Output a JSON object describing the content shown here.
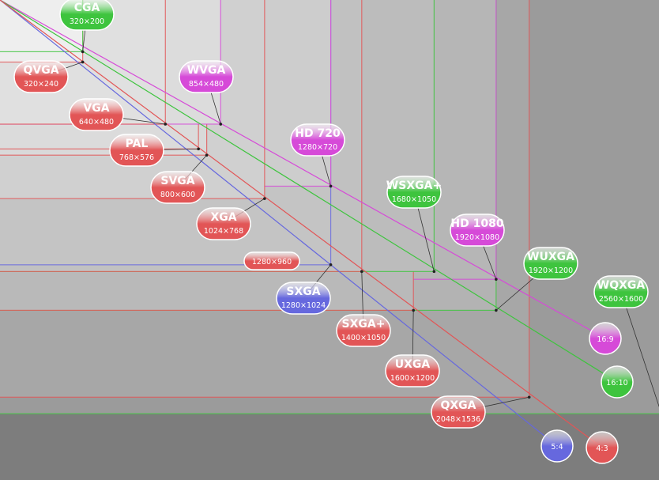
{
  "nodes": [
    {
      "label": "CGA",
      "resolution": "320×200",
      "color": "#3ec43e"
    },
    {
      "label": "QVGA",
      "resolution": "320×240",
      "color": "#e25556"
    },
    {
      "label": "WVGA",
      "resolution": "854×480",
      "color": "#d64ad8"
    },
    {
      "label": "VGA",
      "resolution": "640×480",
      "color": "#e25556"
    },
    {
      "label": "PAL",
      "resolution": "768×576",
      "color": "#e25556"
    },
    {
      "label": "HD 720",
      "resolution": "1280×720",
      "color": "#d64ad8"
    },
    {
      "label": "SVGA",
      "resolution": "800×600",
      "color": "#e25556"
    },
    {
      "label": "WSXGA+",
      "resolution": "1680×1050",
      "color": "#3ec43e"
    },
    {
      "label": "XGA",
      "resolution": "1024×768",
      "color": "#e25556"
    },
    {
      "label": "HD 1080",
      "resolution": "1920×1080",
      "color": "#d64ad8"
    },
    {
      "label": "1280×960",
      "color": "#e25556"
    },
    {
      "label": "WUXGA",
      "resolution": "1920×1200",
      "color": "#3ec43e"
    },
    {
      "label": "SXGA",
      "resolution": "1280×1024",
      "color": "#6668de"
    },
    {
      "label": "WQXGA",
      "resolution": "2560×1600",
      "color": "#3ec43e"
    },
    {
      "label": "SXGA+",
      "resolution": "1400×1050",
      "color": "#e25556"
    },
    {
      "label": "UXGA",
      "resolution": "1600×1200",
      "color": "#e25556"
    },
    {
      "label": "QXGA",
      "resolution": "2048×1536",
      "color": "#e25556"
    }
  ],
  "ratios": [
    {
      "label": "16:9",
      "color": "#d64ad8"
    },
    {
      "label": "16:10",
      "color": "#3ec43e"
    },
    {
      "label": "5:4",
      "color": "#6668de"
    },
    {
      "label": "4:3",
      "color": "#e25556"
    }
  ]
}
